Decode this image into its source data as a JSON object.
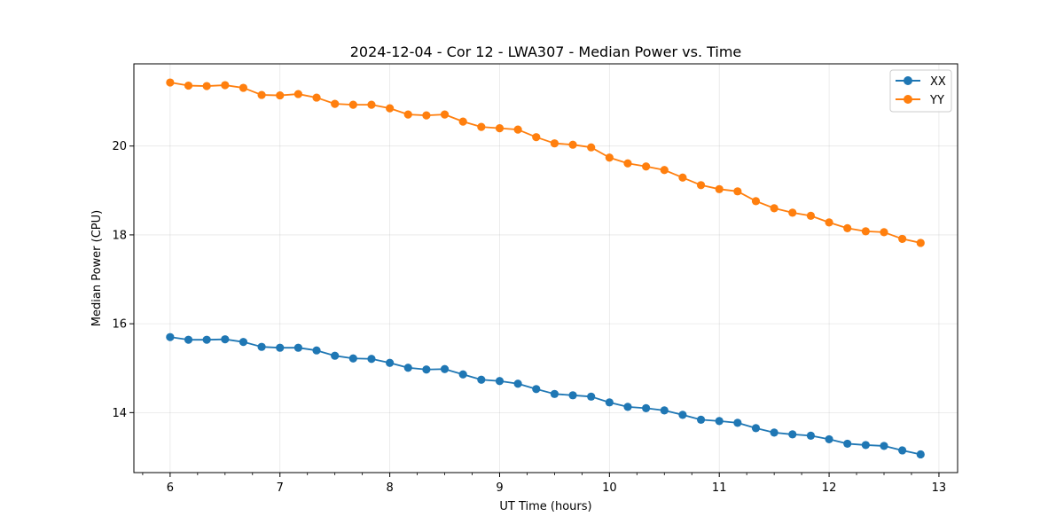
{
  "chart_data": {
    "type": "line",
    "title": "2024-12-04 - Cor 12 - LWA307 - Median Power vs. Time",
    "xlabel": "UT Time (hours)",
    "ylabel": "Median Power (CPU)",
    "xlim": [
      5.67,
      13.17
    ],
    "ylim": [
      12.65,
      21.85
    ],
    "xticks": [
      6,
      7,
      8,
      9,
      10,
      11,
      12,
      13
    ],
    "xtick_labels": [
      "6",
      "7",
      "8",
      "9",
      "10",
      "11",
      "12",
      "13"
    ],
    "x_minor_ticks": [
      5.75,
      6.25,
      6.5,
      6.75,
      7.25,
      7.5,
      7.75,
      8.25,
      8.5,
      8.75,
      9.25,
      9.5,
      9.75,
      10.25,
      10.5,
      10.75,
      11.25,
      11.5,
      11.75,
      12.25,
      12.5,
      12.75,
      13.0
    ],
    "yticks": [
      14,
      16,
      18,
      20
    ],
    "ytick_labels": [
      "14",
      "16",
      "18",
      "20"
    ],
    "grid": true,
    "legend_position": "top-right",
    "x": [
      6.0,
      6.1667,
      6.3333,
      6.5,
      6.6667,
      6.8333,
      7.0,
      7.1667,
      7.3333,
      7.5,
      7.6667,
      7.8333,
      8.0,
      8.1667,
      8.3333,
      8.5,
      8.6667,
      8.8333,
      9.0,
      9.1667,
      9.3333,
      9.5,
      9.6667,
      9.8333,
      10.0,
      10.1667,
      10.3333,
      10.5,
      10.6667,
      10.8333,
      11.0,
      11.1667,
      11.3333,
      11.5,
      11.6667,
      11.8333,
      12.0,
      12.1667,
      12.3333,
      12.5,
      12.6667,
      12.8333
    ],
    "series": [
      {
        "name": "XX",
        "color": "#1f77b4",
        "values": [
          15.7,
          15.64,
          15.64,
          15.65,
          15.59,
          15.48,
          15.46,
          15.46,
          15.4,
          15.28,
          15.22,
          15.21,
          15.12,
          15.01,
          14.97,
          14.98,
          14.86,
          14.74,
          14.71,
          14.65,
          14.53,
          14.42,
          14.39,
          14.36,
          14.23,
          14.13,
          14.1,
          14.05,
          13.95,
          13.84,
          13.81,
          13.77,
          13.65,
          13.55,
          13.51,
          13.48,
          13.4,
          13.3,
          13.27,
          13.25,
          13.15,
          13.06
        ]
      },
      {
        "name": "YY",
        "color": "#ff7f0e",
        "values": [
          21.43,
          21.36,
          21.35,
          21.37,
          21.31,
          21.15,
          21.14,
          21.17,
          21.09,
          20.95,
          20.93,
          20.93,
          20.85,
          20.71,
          20.69,
          20.71,
          20.55,
          20.43,
          20.4,
          20.37,
          20.2,
          20.06,
          20.03,
          19.97,
          19.74,
          19.61,
          19.54,
          19.46,
          19.29,
          19.12,
          19.03,
          18.98,
          18.76,
          18.6,
          18.5,
          18.43,
          18.28,
          18.15,
          18.08,
          18.06,
          17.91,
          17.82
        ]
      }
    ]
  }
}
